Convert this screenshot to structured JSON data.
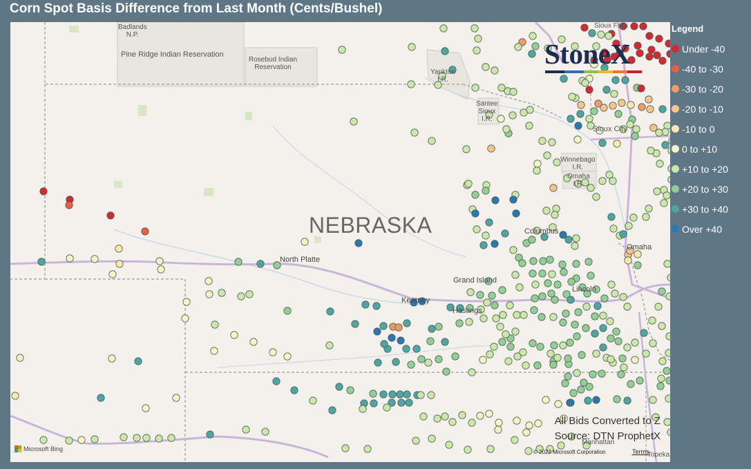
{
  "title": "Corn Spot Basis Difference from Last Month (Cents/Bushel)",
  "state_label": "NEBRASKA",
  "map_labels": [
    {
      "text": "Badlands\nN.P."
    },
    {
      "text": "Pine Ridge Indian Reservation"
    },
    {
      "text": "Rosebud Indian\nReservation"
    },
    {
      "text": "Yankton\nI.R."
    },
    {
      "text": "Santee\nSioux\nI.R."
    },
    {
      "text": "Sioux Falls"
    },
    {
      "text": "Sioux City"
    },
    {
      "text": "Winnebago\nI.R."
    },
    {
      "text": "Omaha\nI.R."
    },
    {
      "text": "Manhattan"
    },
    {
      "text": "Topeka"
    }
  ],
  "cities": [
    "North Platte",
    "Grand Island",
    "Kearney",
    "Hastings",
    "Columbus",
    "Lincoln",
    "Omaha"
  ],
  "logo": {
    "text": "StoneX"
  },
  "notes": {
    "line1": "All Bids Converted to Z",
    "line2": "Source: DTN ProphetX"
  },
  "attribution": {
    "bing": "Microsoft Bing",
    "copyright": "© 2022 Microsoft Corporation",
    "terms": "Terms"
  },
  "legend": {
    "title": "Legend",
    "items": [
      {
        "label": "Under -40",
        "color": "#d7272f"
      },
      {
        "label": "-40 to -30",
        "color": "#e8603e"
      },
      {
        "label": "-30 to -20",
        "color": "#f29a63"
      },
      {
        "label": "-20 to -10",
        "color": "#f7c58a"
      },
      {
        "label": "-10 to 0",
        "color": "#fbe8ae"
      },
      {
        "label": "0 to +10",
        "color": "#f2f5c6"
      },
      {
        "label": "+10 to +20",
        "color": "#cce8a9"
      },
      {
        "label": "+20 to +30",
        "color": "#93cf95"
      },
      {
        "label": "+30 to +40",
        "color": "#4ea6a4"
      },
      {
        "label": "Over +40",
        "color": "#2a78b3"
      }
    ]
  }
}
